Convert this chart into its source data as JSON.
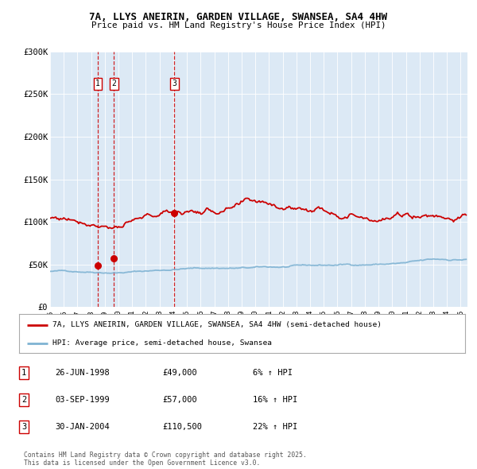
{
  "title1": "7A, LLYS ANEIRIN, GARDEN VILLAGE, SWANSEA, SA4 4HW",
  "title2": "Price paid vs. HM Land Registry's House Price Index (HPI)",
  "bg_color": "#dce9f5",
  "red_line_color": "#cc0000",
  "blue_line_color": "#7fb3d3",
  "transactions": [
    {
      "num": 1,
      "date_num": 1998.49,
      "price": 49000
    },
    {
      "num": 2,
      "date_num": 1999.67,
      "price": 57000
    },
    {
      "num": 3,
      "date_num": 2004.08,
      "price": 110500
    }
  ],
  "legend_label_red": "7A, LLYS ANEIRIN, GARDEN VILLAGE, SWANSEA, SA4 4HW (semi-detached house)",
  "legend_label_blue": "HPI: Average price, semi-detached house, Swansea",
  "footer": "Contains HM Land Registry data © Crown copyright and database right 2025.\nThis data is licensed under the Open Government Licence v3.0.",
  "table_rows": [
    [
      "1",
      "26-JUN-1998",
      "£49,000",
      "6% ↑ HPI"
    ],
    [
      "2",
      "03-SEP-1999",
      "£57,000",
      "16% ↑ HPI"
    ],
    [
      "3",
      "30-JAN-2004",
      "£110,500",
      "22% ↑ HPI"
    ]
  ],
  "ylim": [
    0,
    300000
  ],
  "xlim_start": 1995.0,
  "xlim_end": 2025.5,
  "yticks": [
    0,
    50000,
    100000,
    150000,
    200000,
    250000,
    300000
  ],
  "ylabels": [
    "£0",
    "£50K",
    "£100K",
    "£150K",
    "£200K",
    "£250K",
    "£300K"
  ]
}
